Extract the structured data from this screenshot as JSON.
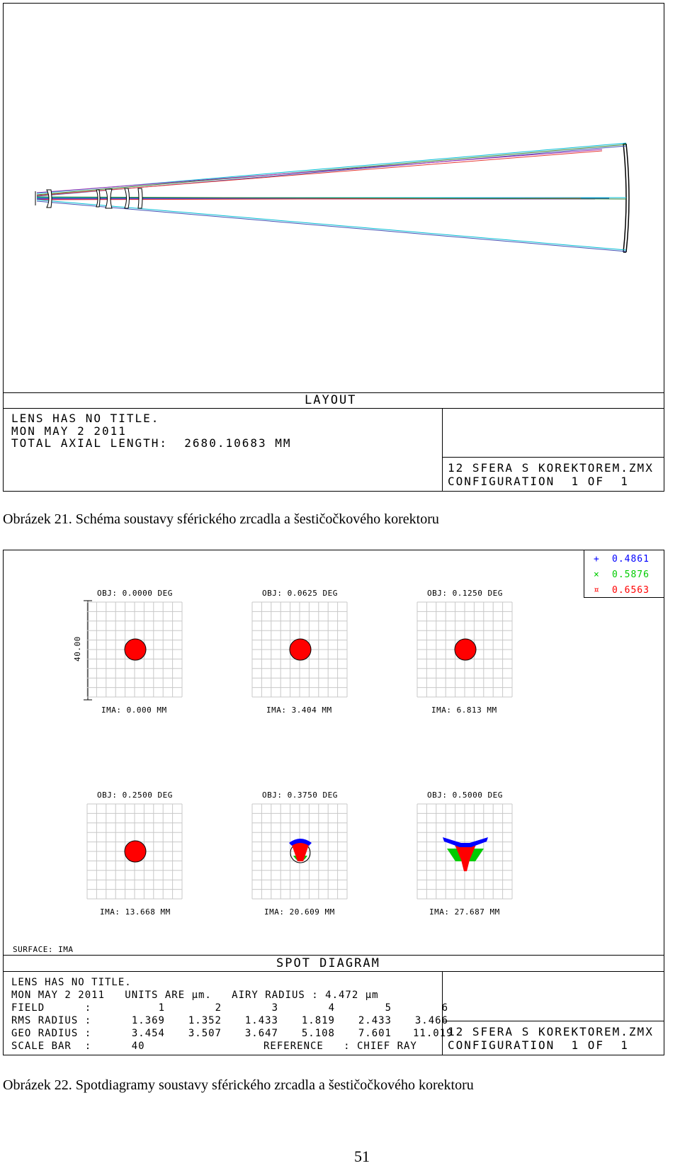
{
  "layout_panel": {
    "title": "LAYOUT",
    "info_lines": [
      "LENS HAS NO TITLE.",
      "MON MAY 2 2011",
      "TOTAL AXIAL LENGTH:  2680.10683 MM"
    ],
    "file_name": "12 SFERA S KOREKTOREM.ZMX",
    "configuration": "CONFIGURATION  1 OF  1"
  },
  "caption_21": "Obrázek 21. Schéma soustavy sférického zrcadla a šestičočkového korektoru",
  "spot_panel": {
    "legend": [
      {
        "symbol": "+",
        "value": "0.4861",
        "color": "#0000ff"
      },
      {
        "symbol": "×",
        "value": "0.5876",
        "color": "#00cc00"
      },
      {
        "symbol": "¤",
        "value": "0.6563",
        "color": "#ff0000"
      }
    ],
    "scale_label": "40.00",
    "spots": [
      {
        "obj": "OBJ: 0.0000 DEG",
        "ima": "IMA: 0.000 MM"
      },
      {
        "obj": "OBJ: 0.0625 DEG",
        "ima": "IMA: 3.404 MM"
      },
      {
        "obj": "OBJ: 0.1250 DEG",
        "ima": "IMA: 6.813 MM"
      },
      {
        "obj": "OBJ: 0.2500 DEG",
        "ima": "IMA: 13.668 MM"
      },
      {
        "obj": "OBJ: 0.3750 DEG",
        "ima": "IMA: 20.609 MM"
      },
      {
        "obj": "OBJ: 0.5000 DEG",
        "ima": "IMA: 27.687 MM"
      }
    ],
    "surface": "SURFACE: IMA",
    "title": "SPOT DIAGRAM",
    "info": {
      "line1": "LENS HAS NO TITLE.",
      "line2": "MON MAY 2 2011   UNITS ARE µm.   AIRY RADIUS : 4.472 µm",
      "field_label": "FIELD      :",
      "field_values": [
        "1",
        "2",
        "3",
        "4",
        "5",
        "6"
      ],
      "rms_label": "RMS RADIUS :",
      "rms_values": [
        "1.369",
        "1.352",
        "1.433",
        "1.819",
        "2.433",
        "3.466"
      ],
      "geo_label": "GEO RADIUS :",
      "geo_values": [
        "3.454",
        "3.507",
        "3.647",
        "5.108",
        "7.601",
        "11.019"
      ],
      "scale_bar": "SCALE BAR  :      40",
      "reference": "REFERENCE   : CHIEF RAY"
    },
    "file_name": "12 SFERA S KOREKTOREM.ZMX",
    "configuration": "CONFIGURATION  1 OF  1"
  },
  "caption_22": "Obrázek 22. Spotdiagramy soustavy sférického zrcadla a šestičočkového korektoru",
  "page_number": "51"
}
